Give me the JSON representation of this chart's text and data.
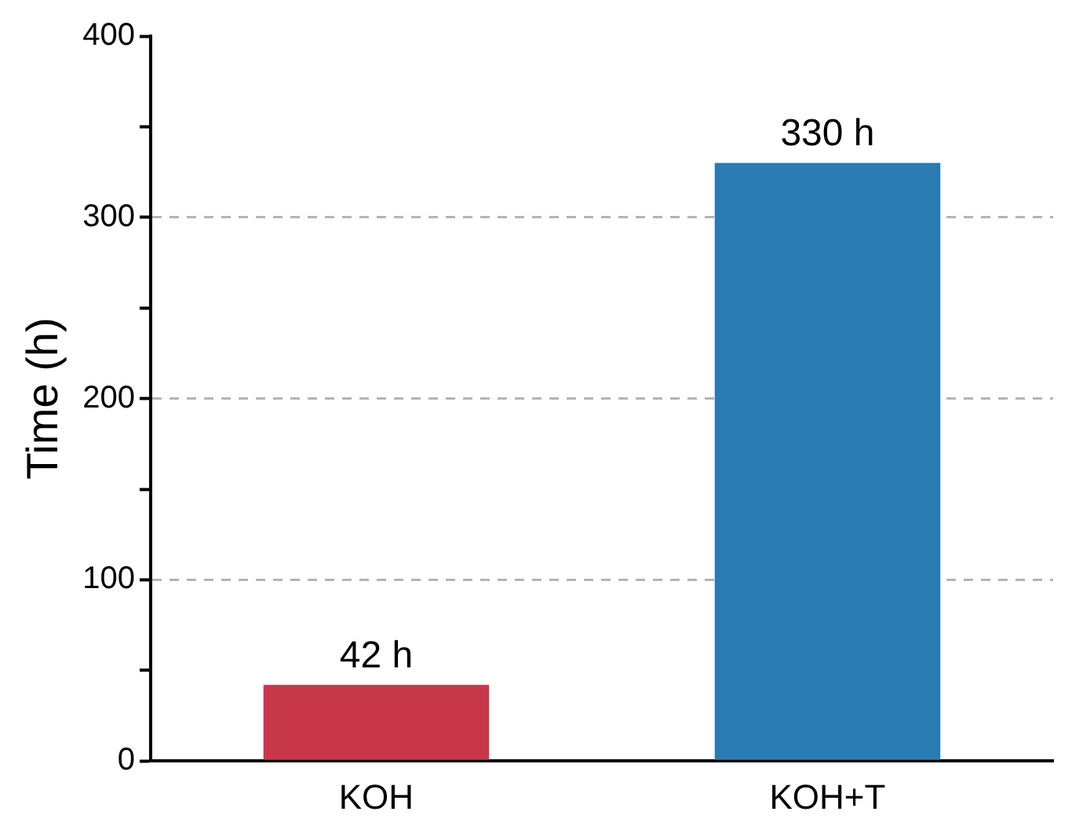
{
  "chart_data": {
    "type": "bar",
    "ylabel": "Time (h)",
    "categories": [
      "KOH",
      "KOH+T"
    ],
    "series": [
      {
        "colors": [
          "#c8364a",
          "#2b7bb3"
        ],
        "values": [
          42,
          330
        ],
        "value_labels": [
          "42 h",
          "330 h"
        ]
      }
    ],
    "ylim": [
      0,
      400
    ],
    "yticks": [
      0,
      {
        "value": 50,
        "label": null
      },
      100,
      {
        "value": 150,
        "label": null
      },
      200,
      {
        "value": 250,
        "label": null
      },
      300,
      {
        "value": 350,
        "label": null
      },
      400
    ],
    "grid": "y"
  }
}
